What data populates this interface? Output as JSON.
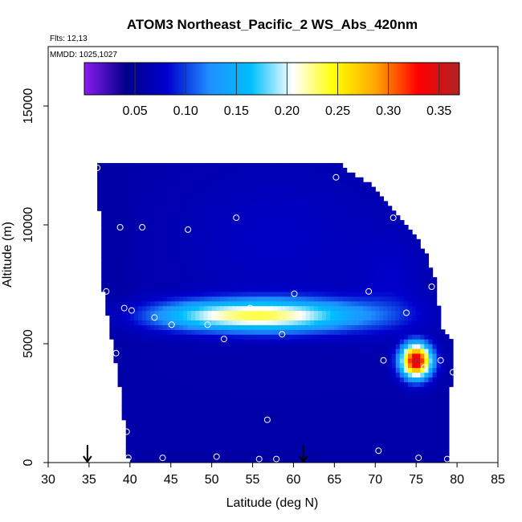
{
  "chart_data": {
    "type": "heatmap",
    "title": "ATOM3 Northeast_Pacific_2 WS_Abs_420nm",
    "annotations": [
      "Flts: 12,13",
      "MMDD: 1025,1027"
    ],
    "xlabel": "Latitude (deg N)",
    "ylabel": "Altitude (m)",
    "xlim": [
      30,
      85
    ],
    "ylim": [
      0,
      17500
    ],
    "x_ticks": [
      "30",
      "35",
      "40",
      "45",
      "50",
      "55",
      "60",
      "65",
      "70",
      "75",
      "80",
      "85"
    ],
    "y_ticks": [
      "0",
      "5000",
      "10000",
      "15000"
    ],
    "grid": false,
    "colorbar": {
      "placement": "top",
      "range": [
        0.0,
        0.37
      ],
      "ticks": [
        "0.05",
        "0.10",
        "0.15",
        "0.20",
        "0.25",
        "0.30",
        "0.35"
      ],
      "colors": [
        "#8a1cf0",
        "#00008b",
        "#0000cd",
        "#1e90ff",
        "#00bfff",
        "#ffffff",
        "#ffff00",
        "#ffa500",
        "#ff0000",
        "#b22222"
      ]
    },
    "background_value": 0.06,
    "coverage": [
      {
        "alt": 0,
        "lat_min": 40.0,
        "lat_max": 79.0
      },
      {
        "alt": 1000,
        "lat_min": 39.8,
        "lat_max": 79.0
      },
      {
        "alt": 2000,
        "lat_min": 39.4,
        "lat_max": 79.0
      },
      {
        "alt": 3000,
        "lat_min": 39.0,
        "lat_max": 79.0
      },
      {
        "alt": 4000,
        "lat_min": 38.5,
        "lat_max": 79.5
      },
      {
        "alt": 4800,
        "lat_min": 38.2,
        "lat_max": 79.5
      },
      {
        "alt": 5500,
        "lat_min": 37.8,
        "lat_max": 78.0
      },
      {
        "alt": 6500,
        "lat_min": 37.2,
        "lat_max": 77.5
      },
      {
        "alt": 7500,
        "lat_min": 36.8,
        "lat_max": 77.2
      },
      {
        "alt": 8500,
        "lat_min": 36.5,
        "lat_max": 76.2
      },
      {
        "alt": 9500,
        "lat_min": 36.5,
        "lat_max": 74.5
      },
      {
        "alt": 10500,
        "lat_min": 36.5,
        "lat_max": 71.8
      },
      {
        "alt": 11500,
        "lat_min": 36.2,
        "lat_max": 69.5
      },
      {
        "alt": 12400,
        "lat_min": 36.0,
        "lat_max": 65.6
      }
    ],
    "features": [
      {
        "kind": "band",
        "lat_center": 55.0,
        "alt_center": 6200,
        "lat_sigma": 6.0,
        "alt_sigma": 450,
        "peak": 0.18
      },
      {
        "kind": "band",
        "lat_center": 63.0,
        "alt_center": 6200,
        "lat_sigma": 7.0,
        "alt_sigma": 500,
        "peak": 0.12
      },
      {
        "kind": "band",
        "lat_center": 47.0,
        "alt_center": 6200,
        "lat_sigma": 5.0,
        "alt_sigma": 450,
        "peak": 0.1
      },
      {
        "kind": "band",
        "lat_center": 58.0,
        "alt_center": 9500,
        "lat_sigma": 9.0,
        "alt_sigma": 2200,
        "peak": 0.05
      },
      {
        "kind": "band",
        "lat_center": 72.0,
        "alt_center": 7500,
        "lat_sigma": 3.0,
        "alt_sigma": 1500,
        "peak": 0.05
      },
      {
        "kind": "plume",
        "lat_center": 75.0,
        "alt_center": 4300,
        "lat_sigma": 1.3,
        "alt_sigma": 500,
        "peak": 0.36
      },
      {
        "kind": "band",
        "lat_center": 38.5,
        "alt_center": 9000,
        "lat_sigma": 1.2,
        "alt_sigma": 3500,
        "peak": 0.025
      },
      {
        "kind": "band",
        "lat_center": 50.0,
        "alt_center": 200,
        "lat_sigma": 8.0,
        "alt_sigma": 250,
        "peak": 0.025
      }
    ],
    "sample_points": [
      {
        "lat": 36.0,
        "alt": 12400
      },
      {
        "lat": 65.2,
        "alt": 12000
      },
      {
        "lat": 38.8,
        "alt": 9900
      },
      {
        "lat": 41.5,
        "alt": 9900
      },
      {
        "lat": 47.1,
        "alt": 9800
      },
      {
        "lat": 53.0,
        "alt": 10300
      },
      {
        "lat": 72.2,
        "alt": 10300
      },
      {
        "lat": 37.1,
        "alt": 7200
      },
      {
        "lat": 60.1,
        "alt": 7100
      },
      {
        "lat": 69.2,
        "alt": 7200
      },
      {
        "lat": 76.9,
        "alt": 7400
      },
      {
        "lat": 39.3,
        "alt": 6500
      },
      {
        "lat": 40.2,
        "alt": 6400
      },
      {
        "lat": 54.7,
        "alt": 6500
      },
      {
        "lat": 43.0,
        "alt": 6100
      },
      {
        "lat": 45.1,
        "alt": 5800
      },
      {
        "lat": 49.5,
        "alt": 5800
      },
      {
        "lat": 58.6,
        "alt": 5400
      },
      {
        "lat": 51.5,
        "alt": 5200
      },
      {
        "lat": 73.8,
        "alt": 6300
      },
      {
        "lat": 38.3,
        "alt": 4600
      },
      {
        "lat": 71.0,
        "alt": 4300
      },
      {
        "lat": 78.0,
        "alt": 4300
      },
      {
        "lat": 76.0,
        "alt": 4000
      },
      {
        "lat": 79.5,
        "alt": 3800
      },
      {
        "lat": 56.8,
        "alt": 1800
      },
      {
        "lat": 39.6,
        "alt": 1300
      },
      {
        "lat": 70.4,
        "alt": 500
      },
      {
        "lat": 39.8,
        "alt": 200
      },
      {
        "lat": 44.0,
        "alt": 200
      },
      {
        "lat": 50.6,
        "alt": 250
      },
      {
        "lat": 55.8,
        "alt": 150
      },
      {
        "lat": 57.9,
        "alt": 150
      },
      {
        "lat": 75.3,
        "alt": 200
      },
      {
        "lat": 78.8,
        "alt": 150
      }
    ],
    "arrows": [
      {
        "lat": 34.8,
        "alt": 0
      },
      {
        "lat": 61.2,
        "alt": 0
      }
    ]
  }
}
